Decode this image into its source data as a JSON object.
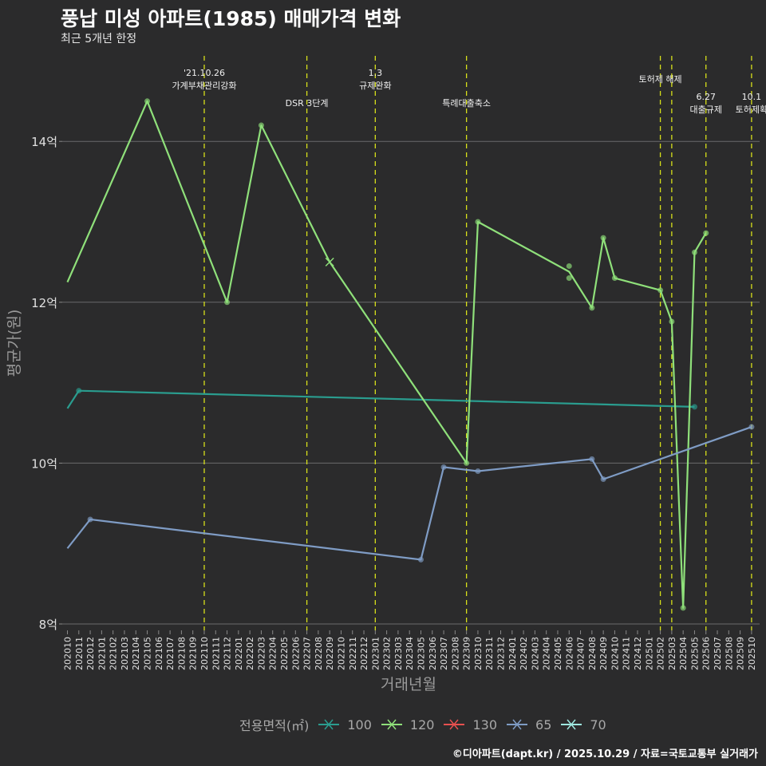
{
  "title": "풍납 미성 아파트(1985) 매매가격 변화",
  "subtitle": "최근 5개년 한정",
  "caption": "©디아파트(dapt.kr) / 2025.10.29 / 자료=국토교통부 실거래가",
  "chart_data": {
    "type": "line",
    "xlabel": "거래년월",
    "ylabel": "평균가(원)",
    "x": [
      "202010",
      "202011",
      "202012",
      "202101",
      "202102",
      "202103",
      "202104",
      "202105",
      "202106",
      "202107",
      "202108",
      "202109",
      "202110",
      "202111",
      "202112",
      "202201",
      "202202",
      "202203",
      "202204",
      "202205",
      "202206",
      "202207",
      "202208",
      "202209",
      "202210",
      "202211",
      "202212",
      "202301",
      "202302",
      "202303",
      "202304",
      "202305",
      "202306",
      "202307",
      "202308",
      "202309",
      "202310",
      "202311",
      "202312",
      "202401",
      "202402",
      "202403",
      "202404",
      "202405",
      "202406",
      "202407",
      "202408",
      "202409",
      "202410",
      "202411",
      "202412",
      "202501",
      "202502",
      "202503",
      "202504",
      "202505",
      "202506",
      "202507",
      "202508",
      "202509",
      "202510"
    ],
    "ylim": [
      7.9,
      14.98
    ],
    "yticks": [
      8,
      10,
      12,
      14
    ],
    "ytick_labels": [
      "8억",
      "10억",
      "12억",
      "14억"
    ],
    "grid": true,
    "legend_title": "전용면적(㎡)",
    "legend_position": "bottom",
    "series": [
      {
        "name": "100",
        "color": "#2a9d8f",
        "line": [
          [
            "202010",
            10.68
          ],
          [
            "202011",
            10.9
          ],
          [
            "202505",
            10.7
          ]
        ],
        "points": [
          [
            "202011",
            10.9
          ],
          [
            "202505",
            10.7
          ]
        ]
      },
      {
        "name": "120",
        "color": "#8fe07a",
        "line": [
          [
            "202010",
            12.25
          ],
          [
            "202105",
            14.5
          ],
          [
            "202112",
            12.0
          ],
          [
            "202203",
            14.2
          ],
          [
            "202209",
            12.5
          ],
          [
            "202309",
            10.0
          ],
          [
            "202310",
            13.0
          ],
          [
            "202406",
            12.38
          ],
          [
            "202408",
            11.93
          ],
          [
            "202409",
            12.8
          ],
          [
            "202410",
            12.3
          ],
          [
            "202502",
            12.15
          ],
          [
            "202503",
            11.76
          ],
          [
            "202504",
            8.2
          ],
          [
            "202505",
            12.62
          ],
          [
            "202506",
            12.86
          ]
        ],
        "points": [
          [
            "202105",
            14.5
          ],
          [
            "202112",
            12.0
          ],
          [
            "202203",
            14.2
          ],
          [
            "202309",
            10.0
          ],
          [
            "202310",
            13.0
          ],
          [
            "202406",
            12.45
          ],
          [
            "202406",
            12.3
          ],
          [
            "202408",
            11.93
          ],
          [
            "202409",
            12.8
          ],
          [
            "202410",
            12.3
          ],
          [
            "202502",
            12.15
          ],
          [
            "202503",
            11.76
          ],
          [
            "202504",
            8.2
          ],
          [
            "202505",
            12.62
          ],
          [
            "202506",
            12.86
          ]
        ],
        "cross": [
          [
            "202209",
            12.5
          ]
        ]
      },
      {
        "name": "130",
        "color": "#e8504f",
        "line": [],
        "points": []
      },
      {
        "name": "65",
        "color": "#7f9cc5",
        "line": [
          [
            "202010",
            8.94
          ],
          [
            "202012",
            9.3
          ],
          [
            "202305",
            8.8
          ],
          [
            "202307",
            9.95
          ],
          [
            "202310",
            9.9
          ],
          [
            "202408",
            10.05
          ],
          [
            "202409",
            9.8
          ],
          [
            "202510",
            10.45
          ]
        ],
        "points": [
          [
            "202012",
            9.3
          ],
          [
            "202305",
            8.8
          ],
          [
            "202307",
            9.95
          ],
          [
            "202310",
            9.9
          ],
          [
            "202408",
            10.05
          ],
          [
            "202409",
            9.8
          ],
          [
            "202510",
            10.45
          ]
        ]
      },
      {
        "name": "70",
        "color": "#9ee8e0",
        "line": [],
        "points": []
      }
    ],
    "annotations": [
      {
        "x": "202110",
        "lines": [
          "'21.10.26",
          "가계부채관리강화"
        ],
        "row": 0
      },
      {
        "x": "202207",
        "lines": [
          "DSR 3단계"
        ],
        "row": 2
      },
      {
        "x": "202301",
        "lines": [
          "1.3",
          "규제완화"
        ],
        "row": 0
      },
      {
        "x": "202309",
        "lines": [
          "특례대출축소"
        ],
        "row": 2
      },
      {
        "x": "202502",
        "lines": [
          "토허제 해제"
        ],
        "row": 1
      },
      {
        "x": "202503",
        "lines": [],
        "row": 1
      },
      {
        "x": "202506",
        "lines": [
          "6.27",
          "대출규제"
        ],
        "row": 3
      },
      {
        "x": "202510",
        "lines": [
          "10.1",
          "토허제확"
        ],
        "row": 3
      }
    ]
  }
}
